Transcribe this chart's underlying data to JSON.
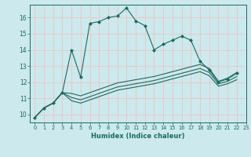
{
  "title": "",
  "xlabel": "Humidex (Indice chaleur)",
  "background_color": "#cce9ed",
  "grid_color": "#e8c8c8",
  "line_color": "#1a6b5e",
  "xlim": [
    -0.5,
    23
  ],
  "ylim": [
    9.5,
    16.8
  ],
  "xticks": [
    0,
    1,
    2,
    3,
    4,
    5,
    6,
    7,
    8,
    9,
    10,
    11,
    12,
    13,
    14,
    15,
    16,
    17,
    18,
    19,
    20,
    21,
    22,
    23
  ],
  "yticks": [
    10,
    11,
    12,
    13,
    14,
    15,
    16
  ],
  "series0_x": [
    0,
    1,
    2,
    3,
    4,
    5,
    6,
    7,
    8,
    9,
    10,
    11,
    12,
    13,
    14,
    15,
    16,
    17,
    18,
    19,
    20,
    21,
    22
  ],
  "series0_y": [
    9.8,
    10.4,
    10.7,
    11.35,
    14.0,
    12.3,
    15.65,
    15.75,
    16.0,
    16.1,
    16.6,
    15.8,
    15.5,
    14.0,
    14.35,
    14.6,
    14.85,
    14.6,
    13.3,
    12.75,
    12.0,
    12.2,
    12.55
  ],
  "series1_x": [
    0,
    1,
    2,
    3,
    4,
    5,
    6,
    7,
    8,
    9,
    10,
    11,
    12,
    13,
    14,
    15,
    16,
    17,
    18,
    19,
    20,
    21,
    22
  ],
  "series1_y": [
    9.8,
    10.4,
    10.7,
    11.35,
    11.3,
    11.15,
    11.35,
    11.55,
    11.75,
    11.95,
    12.05,
    12.15,
    12.25,
    12.35,
    12.5,
    12.65,
    12.8,
    12.95,
    13.1,
    12.85,
    12.05,
    12.25,
    12.6
  ],
  "series2_x": [
    0,
    1,
    2,
    3,
    4,
    5,
    6,
    7,
    8,
    9,
    10,
    11,
    12,
    13,
    14,
    15,
    16,
    17,
    18,
    19,
    20,
    21,
    22
  ],
  "series2_y": [
    9.8,
    10.4,
    10.7,
    11.35,
    11.05,
    10.9,
    11.1,
    11.3,
    11.5,
    11.7,
    11.8,
    11.9,
    12.0,
    12.1,
    12.25,
    12.4,
    12.55,
    12.7,
    12.85,
    12.6,
    11.9,
    12.05,
    12.35
  ],
  "series3_x": [
    0,
    1,
    2,
    3,
    4,
    5,
    6,
    7,
    8,
    9,
    10,
    11,
    12,
    13,
    14,
    15,
    16,
    17,
    18,
    19,
    20,
    21,
    22
  ],
  "series3_y": [
    9.8,
    10.4,
    10.7,
    11.35,
    10.85,
    10.7,
    10.9,
    11.1,
    11.3,
    11.5,
    11.6,
    11.7,
    11.8,
    11.9,
    12.05,
    12.2,
    12.35,
    12.5,
    12.65,
    12.4,
    11.75,
    11.9,
    12.15
  ]
}
